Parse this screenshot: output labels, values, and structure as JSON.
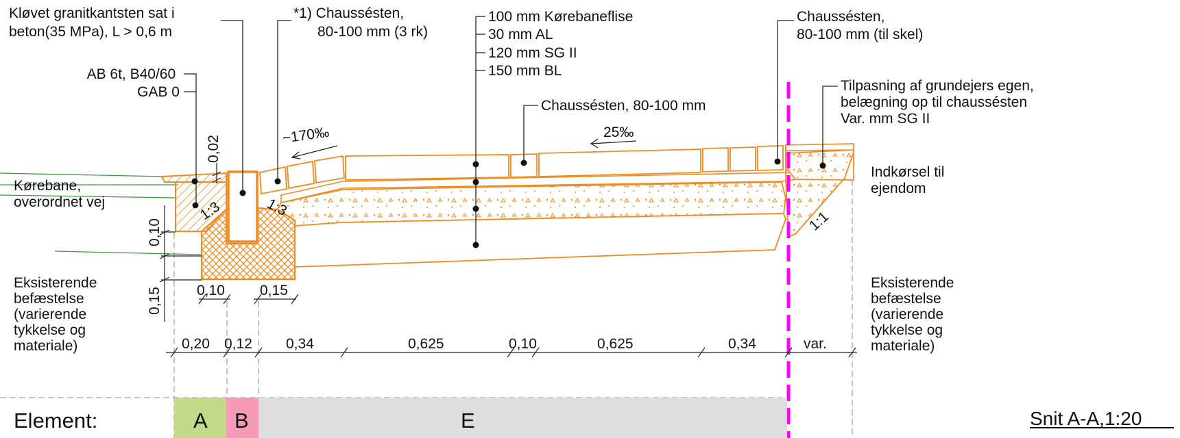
{
  "colors": {
    "layer_outline": "#f28a1f",
    "existing_road_line": "#3a9a3a",
    "property_boundary": "#ff00ff",
    "element_a": "#c4d98a",
    "element_b": "#f59bb8",
    "element_e": "#dedede"
  },
  "labels": {
    "kantsten": [
      "Kløvet granitkantsten sat i",
      "beton(35 MPa), L > 0,6 m"
    ],
    "chaussesten_3rk": [
      "*1) Chaussésten,",
      "80-100 mm (3 rk)"
    ],
    "layers": [
      "100 mm Kørebaneflise",
      "30 mm AL",
      "120 mm SG II",
      "150 mm BL"
    ],
    "chaussesten_skel": [
      "Chaussésten,",
      "80-100 mm (til skel)"
    ],
    "ab": [
      "AB 6t, B40/60",
      "GAB 0"
    ],
    "tilpasning": [
      "Tilpasning af grundejers egen,",
      "belægning op til chaussésten",
      "Var. mm SG II"
    ],
    "chaussesten_mid": "Chaussésten, 80-100 mm",
    "slope_1": "~170‰",
    "slope_2": "25‰",
    "korebane": [
      "Kørebane,",
      "overordnet vej"
    ],
    "indkorsel": [
      "Indkørsel til",
      "ejendom"
    ],
    "existing_left": [
      "Eksisterende",
      "befæstelse",
      "(varierende",
      "tykkelse og",
      "materiale)"
    ],
    "existing_right": [
      "Eksisterende",
      "befæstelse",
      "(varierende",
      "tykkelse og",
      "materiale)"
    ],
    "ratio_left": "1:3",
    "ratio_mid": "1:3",
    "ratio_right": "1:1",
    "dim_002": "0,02",
    "dim_010_v": "0,10",
    "dim_015_v": "0,15",
    "dim_010_h": "0,10",
    "dim_015_h": "0,15"
  },
  "dimensions": [
    "0,20",
    "0,12",
    "0,34",
    "0,625",
    "0,10",
    "0,625",
    "0,34",
    "var."
  ],
  "elements": {
    "label": "Element:",
    "a": "A",
    "b": "B",
    "e": "E"
  },
  "title": "Snit A-A,1:20"
}
